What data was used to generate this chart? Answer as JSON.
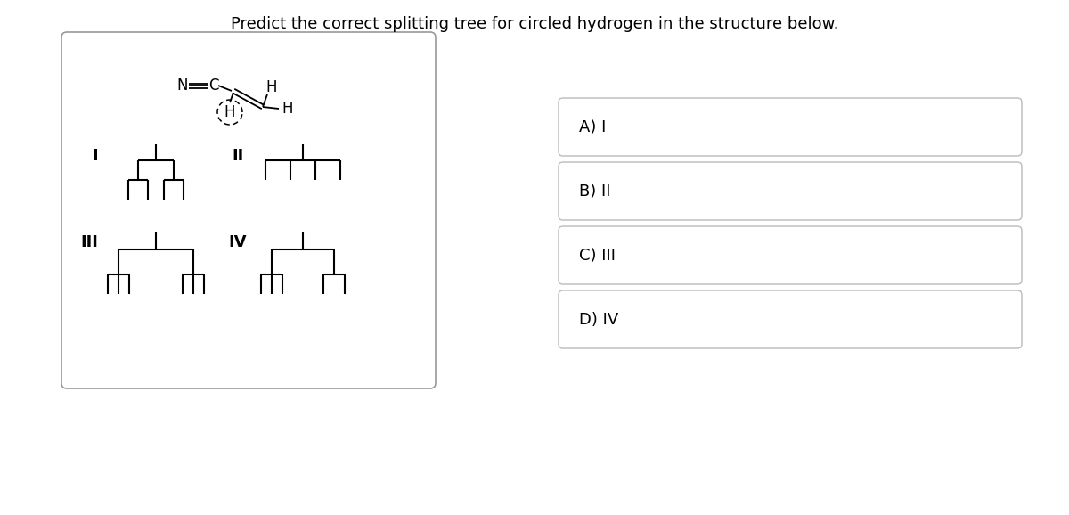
{
  "title": "Predict the correct splitting tree for circled hydrogen in the structure below.",
  "title_fontsize": 13,
  "background_color": "#ffffff",
  "answer_options": [
    "A) I",
    "B) II",
    "C) III",
    "D) IV"
  ]
}
